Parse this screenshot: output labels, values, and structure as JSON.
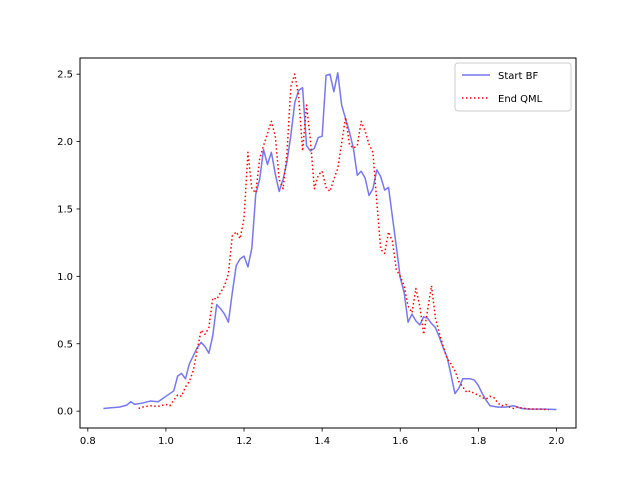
{
  "chart_data": {
    "type": "line",
    "title": "",
    "xlabel": "",
    "ylabel": "",
    "xlim": [
      0.78,
      2.05
    ],
    "ylim": [
      -0.125,
      2.62
    ],
    "xticks": [
      0.8,
      1.0,
      1.2,
      1.4,
      1.6,
      1.8,
      2.0
    ],
    "xtick_labels": [
      "0.8",
      "1.0",
      "1.2",
      "1.4",
      "1.6",
      "1.8",
      "2.0"
    ],
    "yticks": [
      0.0,
      0.5,
      1.0,
      1.5,
      2.0,
      2.5
    ],
    "ytick_labels": [
      "0.0",
      "0.5",
      "1.0",
      "1.5",
      "2.0",
      "2.5"
    ],
    "grid": false,
    "legend_position": "upper right",
    "series": [
      {
        "name": "Start BF",
        "color": "#7777ee",
        "style": "solid",
        "points": [
          [
            0.84,
            0.02
          ],
          [
            0.86,
            0.025
          ],
          [
            0.88,
            0.03
          ],
          [
            0.9,
            0.045
          ],
          [
            0.91,
            0.07
          ],
          [
            0.92,
            0.05
          ],
          [
            0.94,
            0.06
          ],
          [
            0.96,
            0.075
          ],
          [
            0.98,
            0.07
          ],
          [
            1.0,
            0.11
          ],
          [
            1.02,
            0.15
          ],
          [
            1.03,
            0.26
          ],
          [
            1.04,
            0.28
          ],
          [
            1.05,
            0.24
          ],
          [
            1.06,
            0.35
          ],
          [
            1.08,
            0.47
          ],
          [
            1.09,
            0.51
          ],
          [
            1.1,
            0.48
          ],
          [
            1.11,
            0.43
          ],
          [
            1.12,
            0.56
          ],
          [
            1.13,
            0.79
          ],
          [
            1.14,
            0.76
          ],
          [
            1.15,
            0.72
          ],
          [
            1.16,
            0.66
          ],
          [
            1.17,
            0.88
          ],
          [
            1.18,
            1.08
          ],
          [
            1.19,
            1.13
          ],
          [
            1.2,
            1.15
          ],
          [
            1.21,
            1.07
          ],
          [
            1.22,
            1.21
          ],
          [
            1.23,
            1.61
          ],
          [
            1.24,
            1.72
          ],
          [
            1.25,
            1.94
          ],
          [
            1.26,
            1.83
          ],
          [
            1.27,
            1.92
          ],
          [
            1.28,
            1.76
          ],
          [
            1.29,
            1.63
          ],
          [
            1.3,
            1.72
          ],
          [
            1.31,
            1.85
          ],
          [
            1.32,
            2.05
          ],
          [
            1.33,
            2.29
          ],
          [
            1.34,
            2.38
          ],
          [
            1.35,
            2.4
          ],
          [
            1.36,
            1.97
          ],
          [
            1.37,
            1.93
          ],
          [
            1.38,
            1.95
          ],
          [
            1.39,
            2.03
          ],
          [
            1.4,
            2.04
          ],
          [
            1.41,
            2.49
          ],
          [
            1.42,
            2.5
          ],
          [
            1.43,
            2.37
          ],
          [
            1.44,
            2.51
          ],
          [
            1.45,
            2.27
          ],
          [
            1.46,
            2.17
          ],
          [
            1.47,
            2.07
          ],
          [
            1.48,
            1.95
          ],
          [
            1.49,
            1.75
          ],
          [
            1.5,
            1.78
          ],
          [
            1.51,
            1.73
          ],
          [
            1.52,
            1.6
          ],
          [
            1.53,
            1.65
          ],
          [
            1.54,
            1.79
          ],
          [
            1.55,
            1.74
          ],
          [
            1.56,
            1.64
          ],
          [
            1.57,
            1.66
          ],
          [
            1.58,
            1.44
          ],
          [
            1.59,
            1.22
          ],
          [
            1.6,
            0.99
          ],
          [
            1.61,
            0.88
          ],
          [
            1.62,
            0.66
          ],
          [
            1.63,
            0.72
          ],
          [
            1.64,
            0.67
          ],
          [
            1.65,
            0.64
          ],
          [
            1.66,
            0.7
          ],
          [
            1.67,
            0.69
          ],
          [
            1.68,
            0.65
          ],
          [
            1.69,
            0.62
          ],
          [
            1.7,
            0.55
          ],
          [
            1.71,
            0.47
          ],
          [
            1.72,
            0.4
          ],
          [
            1.73,
            0.27
          ],
          [
            1.74,
            0.13
          ],
          [
            1.75,
            0.17
          ],
          [
            1.76,
            0.24
          ],
          [
            1.78,
            0.24
          ],
          [
            1.79,
            0.23
          ],
          [
            1.8,
            0.19
          ],
          [
            1.81,
            0.13
          ],
          [
            1.82,
            0.08
          ],
          [
            1.83,
            0.04
          ],
          [
            1.85,
            0.03
          ],
          [
            1.87,
            0.03
          ],
          [
            1.89,
            0.04
          ],
          [
            1.91,
            0.02
          ],
          [
            1.93,
            0.015
          ],
          [
            1.95,
            0.015
          ],
          [
            1.97,
            0.015
          ],
          [
            2.0,
            0.012
          ]
        ]
      },
      {
        "name": "End QML",
        "color": "#ff0000",
        "style": "dotted",
        "points": [
          [
            0.93,
            0.02
          ],
          [
            0.94,
            0.03
          ],
          [
            0.96,
            0.04
          ],
          [
            0.98,
            0.035
          ],
          [
            1.0,
            0.05
          ],
          [
            1.01,
            0.04
          ],
          [
            1.02,
            0.08
          ],
          [
            1.03,
            0.12
          ],
          [
            1.04,
            0.11
          ],
          [
            1.05,
            0.18
          ],
          [
            1.06,
            0.22
          ],
          [
            1.07,
            0.3
          ],
          [
            1.08,
            0.45
          ],
          [
            1.09,
            0.6
          ],
          [
            1.1,
            0.57
          ],
          [
            1.11,
            0.62
          ],
          [
            1.12,
            0.84
          ],
          [
            1.13,
            0.83
          ],
          [
            1.14,
            0.88
          ],
          [
            1.15,
            0.93
          ],
          [
            1.16,
            1.02
          ],
          [
            1.17,
            1.3
          ],
          [
            1.18,
            1.33
          ],
          [
            1.19,
            1.28
          ],
          [
            1.2,
            1.43
          ],
          [
            1.21,
            1.92
          ],
          [
            1.22,
            1.65
          ],
          [
            1.23,
            1.62
          ],
          [
            1.24,
            1.87
          ],
          [
            1.25,
            1.97
          ],
          [
            1.26,
            2.06
          ],
          [
            1.27,
            2.15
          ],
          [
            1.28,
            2.04
          ],
          [
            1.29,
            1.72
          ],
          [
            1.3,
            1.65
          ],
          [
            1.31,
            1.92
          ],
          [
            1.32,
            2.41
          ],
          [
            1.33,
            2.5
          ],
          [
            1.34,
            2.33
          ],
          [
            1.35,
            1.93
          ],
          [
            1.36,
            2.27
          ],
          [
            1.37,
            2.01
          ],
          [
            1.38,
            1.65
          ],
          [
            1.39,
            1.75
          ],
          [
            1.4,
            1.78
          ],
          [
            1.41,
            1.66
          ],
          [
            1.42,
            1.63
          ],
          [
            1.43,
            1.72
          ],
          [
            1.44,
            1.8
          ],
          [
            1.45,
            1.99
          ],
          [
            1.46,
            2.18
          ],
          [
            1.47,
            1.98
          ],
          [
            1.48,
            1.95
          ],
          [
            1.49,
            1.97
          ],
          [
            1.5,
            2.15
          ],
          [
            1.51,
            2.08
          ],
          [
            1.52,
            1.98
          ],
          [
            1.53,
            1.92
          ],
          [
            1.54,
            1.55
          ],
          [
            1.55,
            1.2
          ],
          [
            1.56,
            1.17
          ],
          [
            1.57,
            1.33
          ],
          [
            1.58,
            1.26
          ],
          [
            1.59,
            1.05
          ],
          [
            1.6,
            1.0
          ],
          [
            1.61,
            0.93
          ],
          [
            1.62,
            0.78
          ],
          [
            1.63,
            0.73
          ],
          [
            1.64,
            0.91
          ],
          [
            1.65,
            0.78
          ],
          [
            1.66,
            0.57
          ],
          [
            1.67,
            0.75
          ],
          [
            1.68,
            0.93
          ],
          [
            1.69,
            0.69
          ],
          [
            1.7,
            0.58
          ],
          [
            1.71,
            0.48
          ],
          [
            1.72,
            0.39
          ],
          [
            1.73,
            0.35
          ],
          [
            1.74,
            0.3
          ],
          [
            1.75,
            0.22
          ],
          [
            1.76,
            0.18
          ],
          [
            1.77,
            0.14
          ],
          [
            1.78,
            0.15
          ],
          [
            1.79,
            0.13
          ],
          [
            1.8,
            0.12
          ],
          [
            1.81,
            0.1
          ],
          [
            1.82,
            0.09
          ],
          [
            1.83,
            0.11
          ],
          [
            1.84,
            0.1
          ],
          [
            1.85,
            0.06
          ],
          [
            1.86,
            0.04
          ],
          [
            1.87,
            0.05
          ],
          [
            1.88,
            0.03
          ],
          [
            1.89,
            0.02
          ],
          [
            1.9,
            0.03
          ],
          [
            1.92,
            0.02
          ],
          [
            1.94,
            0.015
          ],
          [
            1.96,
            0.015
          ],
          [
            1.98,
            0.01
          ]
        ]
      }
    ]
  }
}
